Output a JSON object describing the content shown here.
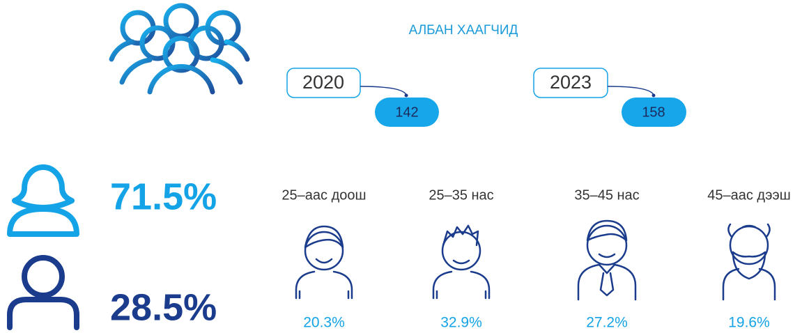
{
  "header": {
    "title": "АЛБАН ХААГЧИД"
  },
  "years": [
    {
      "year": 2020,
      "count": 142
    },
    {
      "year": 2023,
      "count": 158
    }
  ],
  "gender": [
    {
      "share": "71.5%"
    },
    {
      "share": "28.5%"
    }
  ],
  "age_groups": [
    {
      "label": "25–аас доош",
      "share": "20.3%"
    },
    {
      "label": "25–35 нас",
      "share": "32.9%"
    },
    {
      "label": "35–45 нас",
      "share": "27.2%"
    },
    {
      "label": "45–аас дээш",
      "share": "19.6%"
    }
  ]
}
